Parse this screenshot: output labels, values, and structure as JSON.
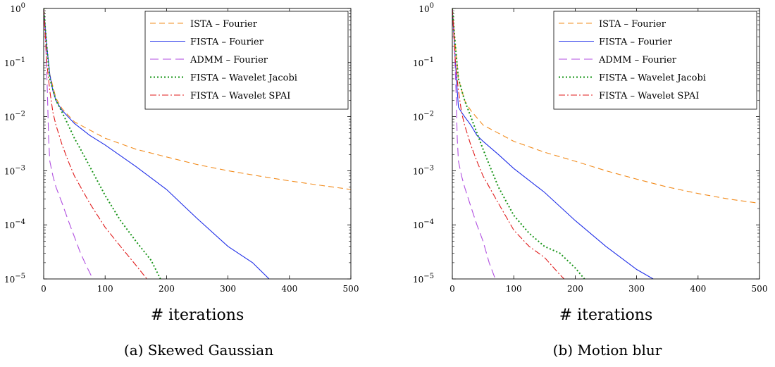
{
  "figure": {
    "subcaptions": [
      "(a) Skewed Gaussian",
      "(b) Motion blur"
    ]
  },
  "chart_data": [
    {
      "type": "line",
      "panel": "(a)",
      "caption": "(a) Skewed Gaussian",
      "xlabel": "# iterations",
      "ylabel": "",
      "xlim": [
        0,
        500
      ],
      "ylim": [
        1e-05,
        1
      ],
      "yscale": "log",
      "xticks": [
        0,
        100,
        200,
        300,
        400,
        500
      ],
      "yticks": [
        {
          "value": 1,
          "base": "10",
          "exp": "0"
        },
        {
          "value": 0.1,
          "base": "10",
          "exp": "−1"
        },
        {
          "value": 0.01,
          "base": "10",
          "exp": "−2"
        },
        {
          "value": 0.001,
          "base": "10",
          "exp": "−3"
        },
        {
          "value": 0.0001,
          "base": "10",
          "exp": "−4"
        },
        {
          "value": 1e-05,
          "base": "10",
          "exp": "−5"
        }
      ],
      "legend_position": "top-right",
      "series": [
        {
          "name": "ISTA – Fourier",
          "color": "#f28c1e",
          "dash": "8 5",
          "x": [
            0,
            5,
            10,
            20,
            30,
            50,
            100,
            150,
            200,
            250,
            300,
            350,
            400,
            450,
            500
          ],
          "y": [
            1,
            0.2,
            0.06,
            0.022,
            0.014,
            0.008,
            0.004,
            0.0025,
            0.0018,
            0.0013,
            0.001,
            0.0008,
            0.00065,
            0.00054,
            0.00045
          ]
        },
        {
          "name": "FISTA – Fourier",
          "color": "#1f2ee8",
          "dash": "",
          "x": [
            0,
            5,
            10,
            15,
            20,
            25,
            30,
            50,
            75,
            100,
            150,
            200,
            250,
            300,
            340,
            367
          ],
          "y": [
            1,
            0.2,
            0.06,
            0.03,
            0.02,
            0.016,
            0.013,
            0.0075,
            0.0045,
            0.003,
            0.0012,
            0.00045,
            0.00013,
            4e-05,
            2e-05,
            1e-05
          ]
        },
        {
          "name": "ADMM – Fourier",
          "color": "#b04ee0",
          "dash": "12 6",
          "x": [
            0,
            3,
            6,
            8,
            10,
            15,
            20,
            30,
            40,
            50,
            60,
            70,
            80
          ],
          "y": [
            1,
            0.3,
            0.03,
            0.004,
            0.0015,
            0.0008,
            0.0005,
            0.00025,
            0.00012,
            6e-05,
            3e-05,
            1.7e-05,
            1e-05
          ]
        },
        {
          "name": "FISTA – Wavelet Jacobi",
          "color": "#179417",
          "dash": "2 3",
          "x": [
            0,
            5,
            10,
            20,
            30,
            40,
            50,
            60,
            75,
            100,
            125,
            150,
            175,
            190
          ],
          "y": [
            1,
            0.2,
            0.05,
            0.02,
            0.012,
            0.007,
            0.004,
            0.0025,
            0.0012,
            0.00035,
            0.00012,
            5e-05,
            2.2e-05,
            1e-05
          ]
        },
        {
          "name": "FISTA – Wavelet SPAI",
          "color": "#e01b1b",
          "dash": "9 3 2 3",
          "x": [
            0,
            5,
            10,
            15,
            20,
            30,
            40,
            50,
            75,
            100,
            125,
            150,
            168
          ],
          "y": [
            1,
            0.1,
            0.03,
            0.012,
            0.007,
            0.003,
            0.0015,
            0.0008,
            0.00025,
            9e-05,
            4e-05,
            1.8e-05,
            1e-05
          ]
        }
      ]
    },
    {
      "type": "line",
      "panel": "(b)",
      "caption": "(b) Motion blur",
      "xlabel": "# iterations",
      "ylabel": "",
      "xlim": [
        0,
        500
      ],
      "ylim": [
        1e-05,
        1
      ],
      "yscale": "log",
      "xticks": [
        0,
        100,
        200,
        300,
        400,
        500
      ],
      "yticks": [
        {
          "value": 1,
          "base": "10",
          "exp": "0"
        },
        {
          "value": 0.1,
          "base": "10",
          "exp": "−1"
        },
        {
          "value": 0.01,
          "base": "10",
          "exp": "−2"
        },
        {
          "value": 0.001,
          "base": "10",
          "exp": "−3"
        },
        {
          "value": 0.0001,
          "base": "10",
          "exp": "−4"
        },
        {
          "value": 1e-05,
          "base": "10",
          "exp": "−5"
        }
      ],
      "legend_position": "top-right",
      "series": [
        {
          "name": "ISTA – Fourier",
          "color": "#f28c1e",
          "dash": "8 5",
          "x": [
            0,
            5,
            10,
            20,
            30,
            50,
            100,
            150,
            200,
            250,
            300,
            350,
            400,
            450,
            500
          ],
          "y": [
            1,
            0.2,
            0.05,
            0.02,
            0.013,
            0.007,
            0.0035,
            0.0022,
            0.0015,
            0.001,
            0.0007,
            0.0005,
            0.00038,
            0.0003,
            0.00025
          ]
        },
        {
          "name": "FISTA – Fourier",
          "color": "#1f2ee8",
          "dash": "",
          "x": [
            0,
            5,
            8,
            10,
            15,
            20,
            30,
            40,
            50,
            75,
            100,
            150,
            200,
            250,
            300,
            327
          ],
          "y": [
            1,
            0.1,
            0.03,
            0.015,
            0.012,
            0.01,
            0.007,
            0.0045,
            0.0035,
            0.002,
            0.0011,
            0.0004,
            0.00012,
            4e-05,
            1.5e-05,
            1e-05
          ]
        },
        {
          "name": "ADMM – Fourier",
          "color": "#b04ee0",
          "dash": "12 6",
          "x": [
            0,
            3,
            6,
            8,
            10,
            15,
            20,
            30,
            40,
            50,
            60,
            70
          ],
          "y": [
            1,
            0.3,
            0.03,
            0.004,
            0.0015,
            0.0008,
            0.0005,
            0.00022,
            0.0001,
            5e-05,
            2e-05,
            1e-05
          ]
        },
        {
          "name": "FISTA – Wavelet Jacobi",
          "color": "#179417",
          "dash": "2 3",
          "x": [
            0,
            5,
            10,
            20,
            30,
            40,
            50,
            60,
            75,
            100,
            125,
            150,
            175,
            200,
            215
          ],
          "y": [
            1,
            0.2,
            0.05,
            0.02,
            0.01,
            0.005,
            0.0025,
            0.0013,
            0.0005,
            0.00015,
            7e-05,
            4e-05,
            3e-05,
            1.6e-05,
            1e-05
          ]
        },
        {
          "name": "FISTA – Wavelet SPAI",
          "color": "#e01b1b",
          "dash": "9 3 2 3",
          "x": [
            0,
            5,
            10,
            15,
            20,
            30,
            40,
            50,
            75,
            100,
            125,
            150,
            175,
            182
          ],
          "y": [
            1,
            0.1,
            0.03,
            0.012,
            0.007,
            0.003,
            0.0015,
            0.0008,
            0.00025,
            8e-05,
            4e-05,
            2.5e-05,
            1.2e-05,
            1e-05
          ]
        }
      ]
    }
  ]
}
